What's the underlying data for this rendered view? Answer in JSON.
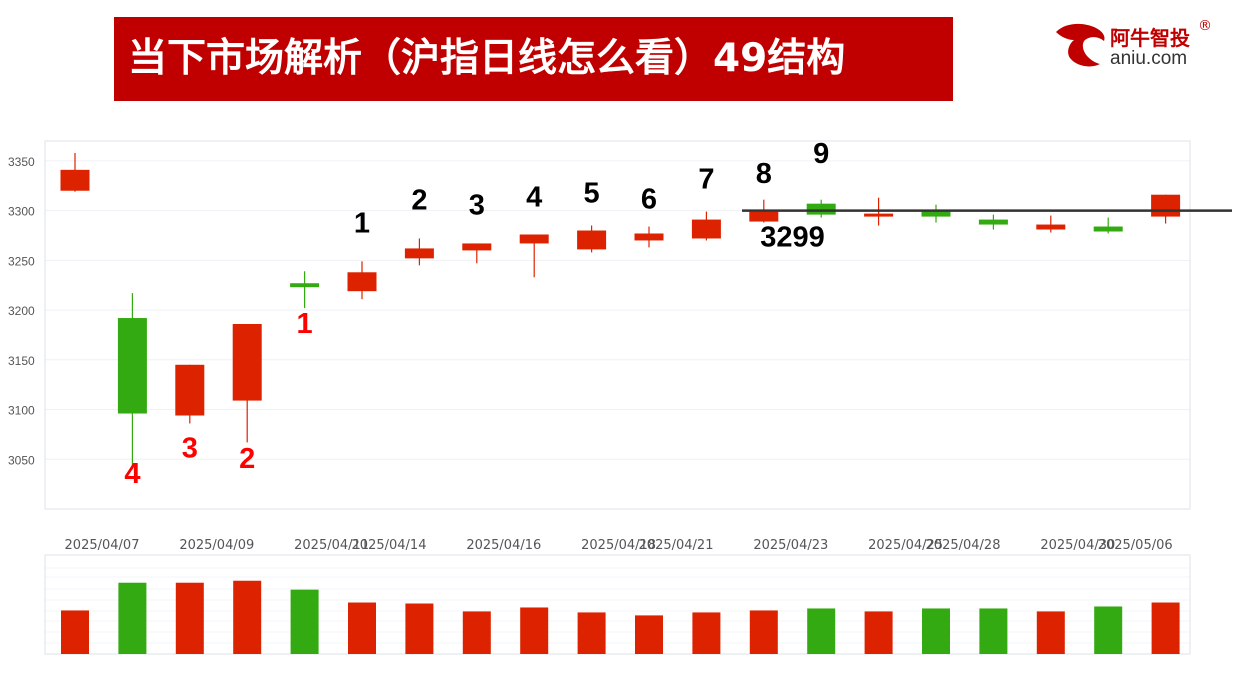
{
  "header": {
    "title": "当下市场解析（沪指日线怎么看）49结构"
  },
  "logo": {
    "cn": "阿牛智投",
    "reg": "®",
    "en": "aniu.com"
  },
  "colors": {
    "up": "#dd2200",
    "down": "#33aa11",
    "title_bg": "#c00000",
    "annot_red": "#ff0000",
    "annot_black": "#000000"
  },
  "chart_data": {
    "type": "candlestick",
    "yticks": [
      3050,
      3100,
      3150,
      3200,
      3250,
      3300,
      3350
    ],
    "ylim": [
      3000,
      3370
    ],
    "xticks": [
      "2025/04/07",
      "2025/04/09",
      "2025/04/11",
      "2025/04/14",
      "2025/04/16",
      "2025/04/18",
      "2025/04/21",
      "2025/04/23",
      "2025/04/25",
      "2025/04/28",
      "2025/04/30",
      "2025/05/06"
    ],
    "candles": [
      {
        "open": 3320,
        "close": 3341,
        "high": 3358,
        "low": 3319,
        "color": "up"
      },
      {
        "open": 3192,
        "close": 3096,
        "high": 3217,
        "low": 3040,
        "color": "down"
      },
      {
        "open": 3094,
        "close": 3145,
        "high": 3145,
        "low": 3086,
        "color": "up"
      },
      {
        "open": 3109,
        "close": 3186,
        "high": 3186,
        "low": 3067,
        "color": "up"
      },
      {
        "open": 3227,
        "close": 3223,
        "high": 3239,
        "low": 3202,
        "color": "down"
      },
      {
        "open": 3219,
        "close": 3238,
        "high": 3249,
        "low": 3211,
        "color": "up"
      },
      {
        "open": 3252,
        "close": 3262,
        "high": 3272,
        "low": 3245,
        "color": "up"
      },
      {
        "open": 3260,
        "close": 3267,
        "high": 3267,
        "low": 3247,
        "color": "up"
      },
      {
        "open": 3267,
        "close": 3276,
        "high": 3276,
        "low": 3233,
        "color": "up"
      },
      {
        "open": 3261,
        "close": 3280,
        "high": 3285,
        "low": 3258,
        "color": "up"
      },
      {
        "open": 3270,
        "close": 3277,
        "high": 3284,
        "low": 3263,
        "color": "up"
      },
      {
        "open": 3272,
        "close": 3291,
        "high": 3299,
        "low": 3270,
        "color": "up"
      },
      {
        "open": 3289,
        "close": 3299,
        "high": 3311,
        "low": 3288,
        "color": "up"
      },
      {
        "open": 3307,
        "close": 3296,
        "high": 3311,
        "low": 3293,
        "color": "down"
      },
      {
        "open": 3294,
        "close": 3297,
        "high": 3313,
        "low": 3285,
        "color": "up"
      },
      {
        "open": 3300,
        "close": 3294,
        "high": 3306,
        "low": 3288,
        "color": "down"
      },
      {
        "open": 3291,
        "close": 3286,
        "high": 3296,
        "low": 3281,
        "color": "down"
      },
      {
        "open": 3281,
        "close": 3286,
        "high": 3295,
        "low": 3278,
        "color": "up"
      },
      {
        "open": 3284,
        "close": 3279,
        "high": 3293,
        "low": 3277,
        "color": "down"
      },
      {
        "open": 3294,
        "close": 3316,
        "high": 3316,
        "low": 3287,
        "color": "up"
      }
    ],
    "volume": [
      {
        "value": 0.44,
        "color": "up"
      },
      {
        "value": 0.72,
        "color": "down"
      },
      {
        "value": 0.72,
        "color": "up"
      },
      {
        "value": 0.74,
        "color": "up"
      },
      {
        "value": 0.65,
        "color": "down"
      },
      {
        "value": 0.52,
        "color": "up"
      },
      {
        "value": 0.51,
        "color": "up"
      },
      {
        "value": 0.43,
        "color": "up"
      },
      {
        "value": 0.47,
        "color": "up"
      },
      {
        "value": 0.42,
        "color": "up"
      },
      {
        "value": 0.39,
        "color": "up"
      },
      {
        "value": 0.42,
        "color": "up"
      },
      {
        "value": 0.44,
        "color": "up"
      },
      {
        "value": 0.46,
        "color": "down"
      },
      {
        "value": 0.43,
        "color": "up"
      },
      {
        "value": 0.46,
        "color": "down"
      },
      {
        "value": 0.46,
        "color": "down"
      },
      {
        "value": 0.43,
        "color": "up"
      },
      {
        "value": 0.48,
        "color": "down"
      },
      {
        "value": 0.52,
        "color": "up"
      }
    ],
    "hline": {
      "value": 3300
    },
    "annotations": [
      {
        "text": "4",
        "candle": 1,
        "price": 3026,
        "color": "red"
      },
      {
        "text": "3",
        "candle": 2,
        "price": 3052,
        "color": "red"
      },
      {
        "text": "2",
        "candle": 3,
        "price": 3041,
        "color": "red"
      },
      {
        "text": "1",
        "candle": 4,
        "price": 3177,
        "color": "red"
      },
      {
        "text": "1",
        "candle": 5,
        "price": 3278,
        "color": "black"
      },
      {
        "text": "2",
        "candle": 6,
        "price": 3301,
        "color": "black"
      },
      {
        "text": "3",
        "candle": 7,
        "price": 3296,
        "color": "black"
      },
      {
        "text": "4",
        "candle": 8,
        "price": 3304,
        "color": "black"
      },
      {
        "text": "5",
        "candle": 9,
        "price": 3308,
        "color": "black"
      },
      {
        "text": "6",
        "candle": 10,
        "price": 3302,
        "color": "black"
      },
      {
        "text": "7",
        "candle": 11,
        "price": 3322,
        "color": "black"
      },
      {
        "text": "8",
        "candle": 12,
        "price": 3328,
        "color": "black"
      },
      {
        "text": "9",
        "candle": 13,
        "price": 3348,
        "color": "black"
      },
      {
        "text": "3299",
        "candle": 12.5,
        "price": 3264,
        "color": "black"
      }
    ]
  }
}
